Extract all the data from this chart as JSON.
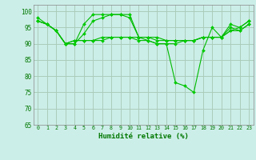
{
  "title": "",
  "xlabel": "Humidité relative (%)",
  "ylabel": "",
  "bg_color": "#cceee8",
  "grid_color": "#aaccbb",
  "line_color": "#00bb00",
  "marker_color": "#00cc00",
  "xlim": [
    -0.5,
    23.5
  ],
  "ylim": [
    65,
    102
  ],
  "yticks": [
    65,
    70,
    75,
    80,
    85,
    90,
    95,
    100
  ],
  "xticks": [
    0,
    1,
    2,
    3,
    4,
    5,
    6,
    7,
    8,
    9,
    10,
    11,
    12,
    13,
    14,
    15,
    16,
    17,
    18,
    19,
    20,
    21,
    22,
    23
  ],
  "series": [
    [
      98,
      96,
      94,
      90,
      90,
      96,
      99,
      99,
      99,
      99,
      98,
      92,
      91,
      90,
      90,
      78,
      77,
      75,
      88,
      95,
      92,
      96,
      95,
      97
    ],
    [
      97,
      96,
      94,
      90,
      90,
      93,
      97,
      98,
      99,
      99,
      99,
      92,
      92,
      91,
      91,
      91,
      91,
      91,
      92,
      92,
      92,
      94,
      94,
      96
    ],
    [
      97,
      96,
      94,
      90,
      91,
      91,
      91,
      92,
      92,
      92,
      92,
      92,
      92,
      92,
      91,
      91,
      91,
      91,
      92,
      92,
      92,
      95,
      94,
      96
    ],
    [
      97,
      96,
      94,
      90,
      91,
      91,
      91,
      91,
      92,
      92,
      92,
      91,
      91,
      90,
      90,
      90,
      91,
      91,
      92,
      92,
      92,
      94,
      95,
      97
    ]
  ]
}
